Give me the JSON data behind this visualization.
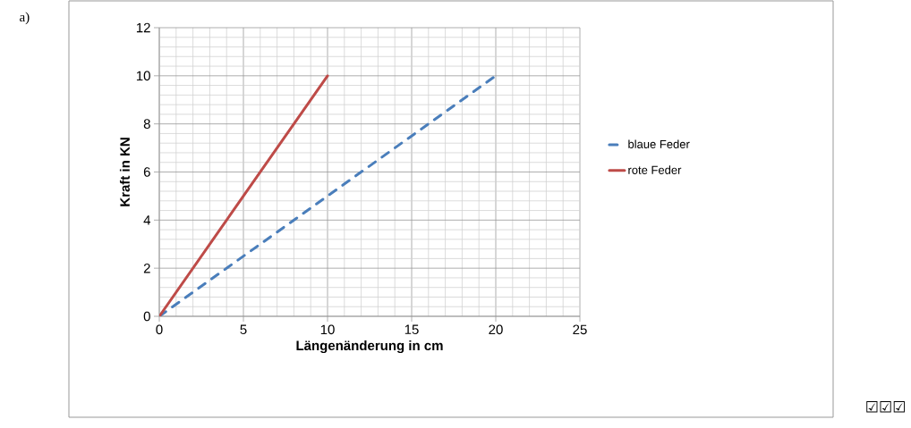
{
  "chart_data": {
    "type": "line",
    "xlabel": "Längenänderung in cm",
    "ylabel": "Kraft in KN",
    "annotations": [
      "a)",
      "☑☑☑"
    ],
    "xlim": [
      0,
      25
    ],
    "ylim": [
      0,
      12
    ],
    "xticks": [
      0,
      5,
      10,
      15,
      20,
      25
    ],
    "yticks": [
      0,
      2,
      4,
      6,
      8,
      10,
      12
    ],
    "grid": true,
    "legend": "right",
    "marker": "none",
    "series": [
      {
        "name": "blaue Feder",
        "color": "#4a7ebb",
        "line_style": "dashed",
        "x": [
          0,
          20
        ],
        "values": [
          0,
          10
        ]
      },
      {
        "name": "rote Feder",
        "color": "#be4b48",
        "line_style": "solid",
        "x": [
          0,
          10
        ],
        "values": [
          0,
          10
        ]
      }
    ]
  }
}
